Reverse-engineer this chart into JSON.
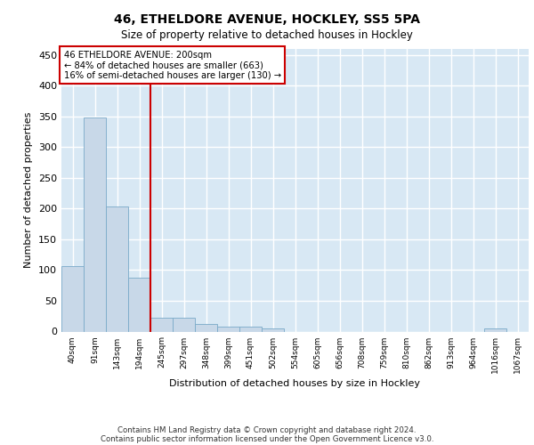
{
  "title_line1": "46, ETHELDORE AVENUE, HOCKLEY, SS5 5PA",
  "title_line2": "Size of property relative to detached houses in Hockley",
  "xlabel": "Distribution of detached houses by size in Hockley",
  "ylabel": "Number of detached properties",
  "footer_line1": "Contains HM Land Registry data © Crown copyright and database right 2024.",
  "footer_line2": "Contains public sector information licensed under the Open Government Licence v3.0.",
  "bar_labels": [
    "40sqm",
    "91sqm",
    "143sqm",
    "194sqm",
    "245sqm",
    "297sqm",
    "348sqm",
    "399sqm",
    "451sqm",
    "502sqm",
    "554sqm",
    "605sqm",
    "656sqm",
    "708sqm",
    "759sqm",
    "810sqm",
    "862sqm",
    "913sqm",
    "964sqm",
    "1016sqm",
    "1067sqm"
  ],
  "bar_values": [
    107,
    348,
    203,
    88,
    22,
    22,
    13,
    8,
    8,
    5,
    0,
    0,
    0,
    0,
    0,
    0,
    0,
    0,
    0,
    5,
    0
  ],
  "bar_color": "#c8d8e8",
  "bar_edge_color": "#7aaac8",
  "background_color": "#d8e8f4",
  "grid_color": "#ffffff",
  "annotation_text_line1": "46 ETHELDORE AVENUE: 200sqm",
  "annotation_text_line2": "← 84% of detached houses are smaller (663)",
  "annotation_text_line3": "16% of semi-detached houses are larger (130) →",
  "annotation_box_color": "#ffffff",
  "annotation_border_color": "#cc0000",
  "vline_color": "#cc0000",
  "vline_x": 3.5,
  "ylim": [
    0,
    460
  ],
  "yticks": [
    0,
    50,
    100,
    150,
    200,
    250,
    300,
    350,
    400,
    450
  ]
}
